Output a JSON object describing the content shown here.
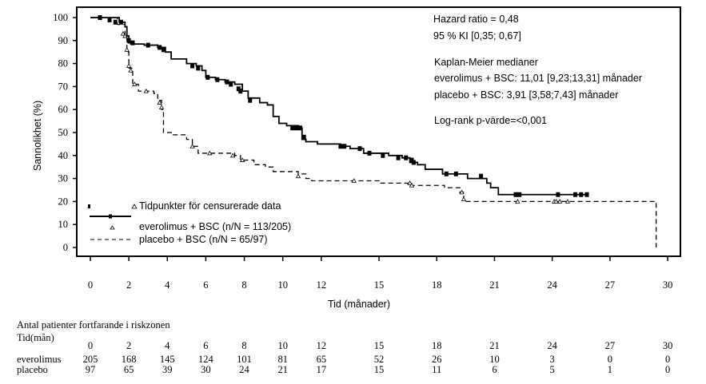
{
  "chart_data": {
    "type": "line",
    "subtype": "kaplan-meier",
    "ylabel": "Sannolikhet (%)",
    "xlabel": "Tid (månader)",
    "ylim": [
      0,
      100
    ],
    "xlim": [
      0,
      30
    ],
    "yticks": [
      "0",
      "10",
      "20",
      "30",
      "40",
      "50",
      "60",
      "70",
      "80",
      "90",
      "100"
    ],
    "xticks": [
      {
        "v": 0,
        "label": "0"
      },
      {
        "v": 2,
        "label": "2"
      },
      {
        "v": 4,
        "label": "4"
      },
      {
        "v": 6,
        "label": "6"
      },
      {
        "v": 8,
        "label": "8"
      },
      {
        "v": 10,
        "label": "10"
      },
      {
        "v": 12,
        "label": "12"
      },
      {
        "v": 15,
        "label": "15"
      },
      {
        "v": 18,
        "label": "18"
      },
      {
        "v": 21,
        "label": "21"
      },
      {
        "v": 24,
        "label": "24"
      },
      {
        "v": 27,
        "label": "27"
      },
      {
        "v": 30,
        "label": "30"
      }
    ],
    "annotations": {
      "hr": "Hazard ratio = 0,48",
      "ci": "95 % KI [0,35; 0,67]",
      "km_title": "Kaplan-Meier medianer",
      "km_evero": "everolimus + BSC: 11,01 [9,23;13,31] månader",
      "km_placebo": "placebo + BSC: 3,91 [3,58;7,43] månader",
      "logrank": "Log-rank p-värde=<0,001"
    },
    "legend": {
      "position": "bottom-left",
      "censor_label": "Tidpunkter för censurerade data",
      "evero_label": "everolimus + BSC (n/N = 113/205)",
      "placebo_label": "placebo + BSC (n/N = 65/97)"
    },
    "series": [
      {
        "name": "everolimus + BSC",
        "style": "solid",
        "censor_marker": "square",
        "steps": [
          [
            0,
            100
          ],
          [
            1.5,
            98
          ],
          [
            1.8,
            96
          ],
          [
            1.9,
            92
          ],
          [
            2.0,
            89
          ],
          [
            2.1,
            88.5
          ],
          [
            2.8,
            88
          ],
          [
            3.5,
            87
          ],
          [
            3.9,
            85
          ],
          [
            4.2,
            82
          ],
          [
            5.0,
            80
          ],
          [
            5.5,
            79
          ],
          [
            5.8,
            77
          ],
          [
            6.0,
            74
          ],
          [
            6.5,
            73
          ],
          [
            7.0,
            72
          ],
          [
            7.5,
            71
          ],
          [
            7.9,
            68
          ],
          [
            8.2,
            65
          ],
          [
            8.8,
            63
          ],
          [
            9.2,
            62
          ],
          [
            9.5,
            57
          ],
          [
            9.8,
            54
          ],
          [
            10.2,
            53
          ],
          [
            10.8,
            52
          ],
          [
            11.0,
            47
          ],
          [
            11.2,
            46
          ],
          [
            11.8,
            45
          ],
          [
            13.0,
            44
          ],
          [
            13.5,
            43
          ],
          [
            14.2,
            41
          ],
          [
            15.5,
            40
          ],
          [
            16.2,
            39
          ],
          [
            16.6,
            37
          ],
          [
            17.0,
            36
          ],
          [
            17.4,
            34
          ],
          [
            18.3,
            32
          ],
          [
            19.6,
            30
          ],
          [
            20.6,
            28
          ],
          [
            20.8,
            26
          ],
          [
            21.2,
            23
          ]
        ],
        "end": 25.8,
        "censored": [
          [
            0.5,
            100
          ],
          [
            1.0,
            99
          ],
          [
            1.3,
            98
          ],
          [
            1.6,
            98
          ],
          [
            2.0,
            90
          ],
          [
            2.2,
            89
          ],
          [
            3.0,
            88
          ],
          [
            3.6,
            87
          ],
          [
            3.8,
            86
          ],
          [
            5.3,
            79
          ],
          [
            5.6,
            78
          ],
          [
            6.1,
            74
          ],
          [
            6.6,
            73
          ],
          [
            7.1,
            72
          ],
          [
            7.3,
            71
          ],
          [
            7.7,
            69
          ],
          [
            7.8,
            68
          ],
          [
            8.3,
            64
          ],
          [
            10.5,
            52
          ],
          [
            10.7,
            52
          ],
          [
            10.9,
            52
          ],
          [
            11.1,
            48
          ],
          [
            13.0,
            44
          ],
          [
            13.2,
            44
          ],
          [
            14.0,
            43
          ],
          [
            14.5,
            41
          ],
          [
            15.2,
            40
          ],
          [
            16.0,
            39
          ],
          [
            16.4,
            39
          ],
          [
            16.7,
            38
          ],
          [
            16.8,
            37
          ],
          [
            18.5,
            32
          ],
          [
            19.0,
            32
          ],
          [
            20.3,
            31
          ],
          [
            22.1,
            23
          ],
          [
            22.3,
            23
          ],
          [
            24.3,
            23
          ],
          [
            25.2,
            23
          ],
          [
            25.5,
            23
          ],
          [
            25.8,
            23
          ]
        ]
      },
      {
        "name": "placebo + BSC",
        "style": "dashed",
        "censor_marker": "triangle",
        "steps": [
          [
            0,
            100
          ],
          [
            1.4,
            97
          ],
          [
            1.8,
            92
          ],
          [
            1.9,
            85
          ],
          [
            2.0,
            78
          ],
          [
            2.2,
            71
          ],
          [
            2.5,
            68
          ],
          [
            3.3,
            67
          ],
          [
            3.5,
            64
          ],
          [
            3.7,
            60
          ],
          [
            3.8,
            50
          ],
          [
            4.3,
            49
          ],
          [
            5.0,
            47
          ],
          [
            5.3,
            44
          ],
          [
            5.6,
            41
          ],
          [
            7.5,
            40
          ],
          [
            7.8,
            38
          ],
          [
            8.5,
            36
          ],
          [
            9.1,
            35
          ],
          [
            9.5,
            33
          ],
          [
            10.8,
            32
          ],
          [
            11.2,
            30
          ],
          [
            11.5,
            29
          ],
          [
            15.0,
            28
          ],
          [
            16.5,
            27
          ],
          [
            18.4,
            26
          ],
          [
            19.2,
            24
          ],
          [
            19.4,
            20
          ],
          [
            29.4,
            0
          ]
        ],
        "end": 29.4,
        "censored": [
          [
            1.7,
            93
          ],
          [
            1.8,
            92
          ],
          [
            1.9,
            86
          ],
          [
            2.0,
            79
          ],
          [
            2.1,
            77
          ],
          [
            2.3,
            71
          ],
          [
            2.9,
            68
          ],
          [
            3.6,
            63
          ],
          [
            3.7,
            61
          ],
          [
            5.3,
            44
          ],
          [
            6.2,
            41
          ],
          [
            7.4,
            40
          ],
          [
            7.9,
            38
          ],
          [
            10.8,
            31
          ],
          [
            13.7,
            29
          ],
          [
            16.6,
            28
          ],
          [
            16.7,
            27
          ],
          [
            19.3,
            24
          ],
          [
            19.4,
            21
          ],
          [
            22.2,
            20
          ],
          [
            24.1,
            20
          ],
          [
            24.2,
            20
          ],
          [
            24.4,
            20
          ],
          [
            24.8,
            20
          ]
        ]
      }
    ],
    "risk_table": {
      "title": "Antal patienter fortfarande i riskzonen",
      "time_label": "Tid(mån)",
      "times": [
        "0",
        "2",
        "4",
        "6",
        "8",
        "10",
        "12",
        "15",
        "18",
        "21",
        "24",
        "27",
        "30"
      ],
      "rows": [
        {
          "label": "everolimus",
          "values": [
            "205",
            "168",
            "145",
            "124",
            "101",
            "81",
            "65",
            "52",
            "26",
            "10",
            "3",
            "0",
            "0"
          ]
        },
        {
          "label": "placebo",
          "values": [
            "97",
            "65",
            "39",
            "30",
            "24",
            "21",
            "17",
            "15",
            "11",
            "6",
            "5",
            "1",
            "0"
          ]
        }
      ]
    }
  }
}
